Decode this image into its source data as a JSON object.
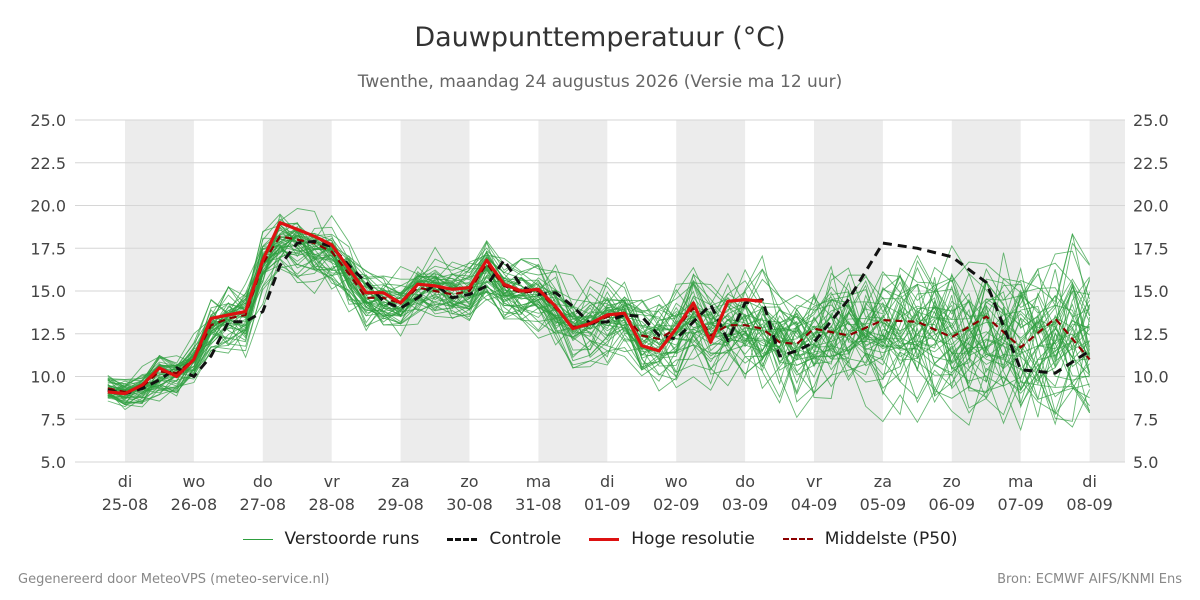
{
  "chart_data": {
    "type": "line",
    "title": "Dauwpunttemperatuur (°C)",
    "subtitle": "Twenthe, maandag 24 augustus 2026 (Versie ma 12 uur)",
    "ylim": [
      5.0,
      25.0
    ],
    "xlim_days": [
      -0.25,
      14.0
    ],
    "y_ticks": [
      "5.0",
      "7.5",
      "10.0",
      "12.5",
      "15.0",
      "17.5",
      "20.0",
      "22.5",
      "25.0"
    ],
    "x_ticks": [
      {
        "day": "di",
        "date": "25-08"
      },
      {
        "day": "wo",
        "date": "26-08"
      },
      {
        "day": "do",
        "date": "27-08"
      },
      {
        "day": "vr",
        "date": "28-08"
      },
      {
        "day": "za",
        "date": "29-08"
      },
      {
        "day": "zo",
        "date": "30-08"
      },
      {
        "day": "ma",
        "date": "31-08"
      },
      {
        "day": "di",
        "date": "01-09"
      },
      {
        "day": "wo",
        "date": "02-09"
      },
      {
        "day": "do",
        "date": "03-09"
      },
      {
        "day": "vr",
        "date": "04-09"
      },
      {
        "day": "za",
        "date": "05-09"
      },
      {
        "day": "zo",
        "date": "06-09"
      },
      {
        "day": "ma",
        "date": "07-09"
      },
      {
        "day": "di",
        "date": "08-09"
      }
    ],
    "grid": true,
    "legend_position": "bottom",
    "colors": {
      "perturbed": "#2e9e3e",
      "control": "#111111",
      "high_res": "#dd1111",
      "median": "#8b0000",
      "shade": "#ececec",
      "grid": "#d6d6d6"
    },
    "series": [
      {
        "name": "Controle",
        "style": "dashed",
        "x": [
          -0.25,
          0,
          0.25,
          0.5,
          0.75,
          1,
          1.25,
          1.5,
          1.75,
          2,
          2.25,
          2.5,
          2.75,
          3,
          3.25,
          3.5,
          3.75,
          4,
          4.25,
          4.5,
          4.75,
          5,
          5.25,
          5.5,
          5.75,
          6,
          6.25,
          6.5,
          6.75,
          7,
          7.25,
          7.5,
          7.75,
          8,
          8.25,
          8.5,
          8.75,
          9,
          9.25,
          9.5,
          9.75,
          10,
          10.5,
          11,
          11.5,
          12,
          12.5,
          13,
          13.5,
          14
        ],
        "values": [
          9.2,
          9.0,
          9.3,
          9.8,
          10.5,
          10.0,
          11.2,
          13.2,
          13.2,
          13.8,
          16.5,
          17.8,
          17.9,
          17.6,
          16.5,
          15.5,
          14.4,
          14.0,
          14.6,
          15.4,
          14.6,
          14.8,
          15.3,
          16.8,
          15.3,
          14.8,
          14.9,
          14.1,
          13.1,
          13.2,
          13.6,
          13.5,
          12.4,
          12.2,
          13.2,
          14.2,
          12.1,
          14.3,
          14.5,
          11.2,
          11.5,
          12.0,
          14.5,
          17.8,
          17.5,
          17.0,
          15.5,
          10.4,
          10.2,
          11.5
        ]
      },
      {
        "name": "Hoge resolutie",
        "style": "solid",
        "x": [
          -0.25,
          0,
          0.25,
          0.5,
          0.75,
          1,
          1.25,
          1.5,
          1.75,
          2,
          2.25,
          2.5,
          2.75,
          3,
          3.25,
          3.5,
          3.75,
          4,
          4.25,
          4.5,
          4.75,
          5,
          5.25,
          5.5,
          5.75,
          6,
          6.25,
          6.5,
          6.75,
          7,
          7.25,
          7.5,
          7.75,
          8,
          8.25,
          8.5,
          8.75,
          9,
          9.25
        ],
        "values": [
          9.1,
          9.0,
          9.5,
          10.5,
          10.0,
          11.0,
          13.4,
          13.6,
          13.8,
          16.8,
          19.0,
          18.6,
          18.2,
          17.7,
          16.3,
          14.9,
          14.9,
          14.3,
          15.4,
          15.3,
          15.1,
          15.2,
          16.8,
          15.4,
          15.0,
          15.1,
          14.1,
          12.8,
          13.1,
          13.6,
          13.7,
          11.8,
          11.5,
          12.8,
          14.3,
          12.0,
          14.4,
          14.5,
          14.4
        ]
      },
      {
        "name": "Middelste (P50)",
        "style": "dashed",
        "x": [
          -0.25,
          0,
          0.25,
          0.5,
          0.75,
          1,
          1.25,
          1.5,
          1.75,
          2,
          2.25,
          2.5,
          2.75,
          3,
          3.25,
          3.5,
          3.75,
          4,
          4.25,
          4.5,
          4.75,
          5,
          5.25,
          5.5,
          5.75,
          6,
          6.25,
          6.5,
          6.75,
          7,
          7.25,
          7.5,
          7.75,
          8,
          8.25,
          8.5,
          8.75,
          9,
          9.25,
          9.5,
          9.75,
          10,
          10.5,
          11,
          11.5,
          12,
          12.5,
          13,
          13.5,
          14
        ],
        "values": [
          9.3,
          9.1,
          9.4,
          10.3,
          10.2,
          11.0,
          13.0,
          13.4,
          13.6,
          16.6,
          18.2,
          18.0,
          17.8,
          17.3,
          16.0,
          14.6,
          14.6,
          14.3,
          15.2,
          15.0,
          14.8,
          15.0,
          16.6,
          15.3,
          14.9,
          15.0,
          14.0,
          12.9,
          13.0,
          13.5,
          13.6,
          12.4,
          12.2,
          12.8,
          14.0,
          12.4,
          13.0,
          13.0,
          12.8,
          12.0,
          11.9,
          12.8,
          12.4,
          13.3,
          13.2,
          12.3,
          13.5,
          11.7,
          13.4,
          11.0
        ]
      }
    ],
    "ensemble": {
      "name": "Verstoorde runs",
      "member_count": 50,
      "x": [
        -0.25,
        0,
        0.25,
        0.5,
        0.75,
        1,
        1.25,
        1.5,
        1.75,
        2,
        2.25,
        2.5,
        2.75,
        3,
        3.25,
        3.5,
        3.75,
        4,
        4.25,
        4.5,
        4.75,
        5,
        5.25,
        5.5,
        5.75,
        6,
        6.25,
        6.5,
        6.75,
        7,
        7.25,
        7.5,
        7.75,
        8,
        8.25,
        8.5,
        8.75,
        9,
        9.25,
        9.5,
        9.75,
        10,
        10.25,
        10.5,
        10.75,
        11,
        11.25,
        11.5,
        11.75,
        12,
        12.25,
        12.5,
        12.75,
        13,
        13.25,
        13.5,
        13.75,
        14
      ],
      "mean": [
        9.3,
        9.1,
        9.4,
        10.2,
        10.2,
        11.0,
        13.0,
        13.4,
        13.6,
        16.6,
        18.0,
        17.9,
        17.6,
        17.2,
        16.0,
        14.6,
        14.5,
        14.3,
        15.1,
        15.0,
        14.8,
        15.0,
        16.4,
        15.3,
        14.9,
        15.0,
        14.0,
        13.0,
        13.1,
        13.5,
        13.5,
        12.4,
        12.3,
        12.8,
        13.8,
        12.5,
        12.9,
        12.9,
        12.7,
        12.3,
        12.0,
        12.4,
        12.6,
        12.8,
        12.7,
        12.6,
        12.8,
        12.9,
        12.9,
        12.6,
        12.4,
        12.3,
        12.5,
        12.2,
        12.4,
        12.3,
        12.4,
        12.2
      ],
      "spread": [
        0.6,
        0.6,
        0.7,
        0.9,
        1.0,
        1.1,
        1.2,
        1.3,
        1.4,
        1.5,
        1.5,
        1.5,
        1.4,
        1.4,
        1.4,
        1.3,
        1.2,
        1.2,
        1.2,
        1.3,
        1.2,
        1.2,
        1.3,
        1.3,
        1.3,
        1.4,
        1.4,
        1.5,
        1.5,
        1.6,
        1.6,
        1.7,
        1.8,
        1.9,
        2.0,
        2.0,
        2.1,
        2.2,
        2.2,
        2.3,
        2.4,
        2.5,
        2.6,
        2.7,
        2.8,
        2.9,
        3.0,
        3.1,
        3.2,
        3.2,
        3.3,
        3.3,
        3.3,
        3.4,
        3.4,
        3.4,
        3.5,
        3.5
      ]
    }
  },
  "legend": {
    "perturbed_label": "Verstoorde runs",
    "control_label": "Controle",
    "high_res_label": "Hoge resolutie",
    "median_label": "Middelste (P50)"
  },
  "footer": {
    "left": "Gegenereerd door MeteoVPS (meteo-service.nl)",
    "right": "Bron: ECMWF AIFS/KNMI Ens"
  }
}
